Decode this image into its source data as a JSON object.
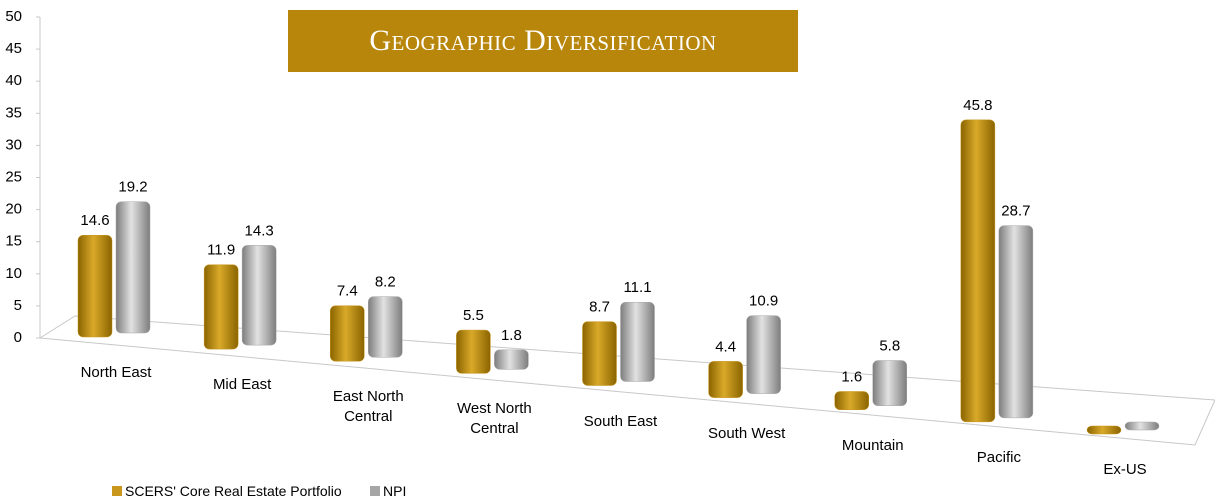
{
  "chart_data": {
    "type": "bar",
    "title": "Geographic Diversification",
    "categories": [
      "North East",
      "Mid East",
      "East North Central",
      "West North Central",
      "South East",
      "South West",
      "Mountain",
      "Pacific",
      "Ex-US"
    ],
    "series": [
      {
        "name": "SCERS' Core Real Estate Portfolio",
        "color": "#c9971c",
        "values": [
          14.6,
          11.9,
          7.4,
          5.5,
          8.7,
          4.4,
          1.6,
          45.8,
          0
        ],
        "value_labels": [
          "14.6",
          "11.9",
          "7.4",
          "5.5",
          "8.7",
          "4.4",
          "1.6",
          "45.8",
          null
        ]
      },
      {
        "name": "NPI",
        "color": "#a6a6a6",
        "values": [
          19.2,
          14.3,
          8.2,
          1.8,
          11.1,
          10.9,
          5.8,
          28.7,
          0
        ],
        "value_labels": [
          "19.2",
          "14.3",
          "8.2",
          "1.8",
          "11.1",
          "10.9",
          "5.8",
          "28.7",
          null
        ]
      }
    ],
    "ylim": [
      0,
      50
    ],
    "yticks": [
      0,
      5,
      10,
      15,
      20,
      25,
      30,
      35,
      40,
      45,
      50
    ]
  }
}
